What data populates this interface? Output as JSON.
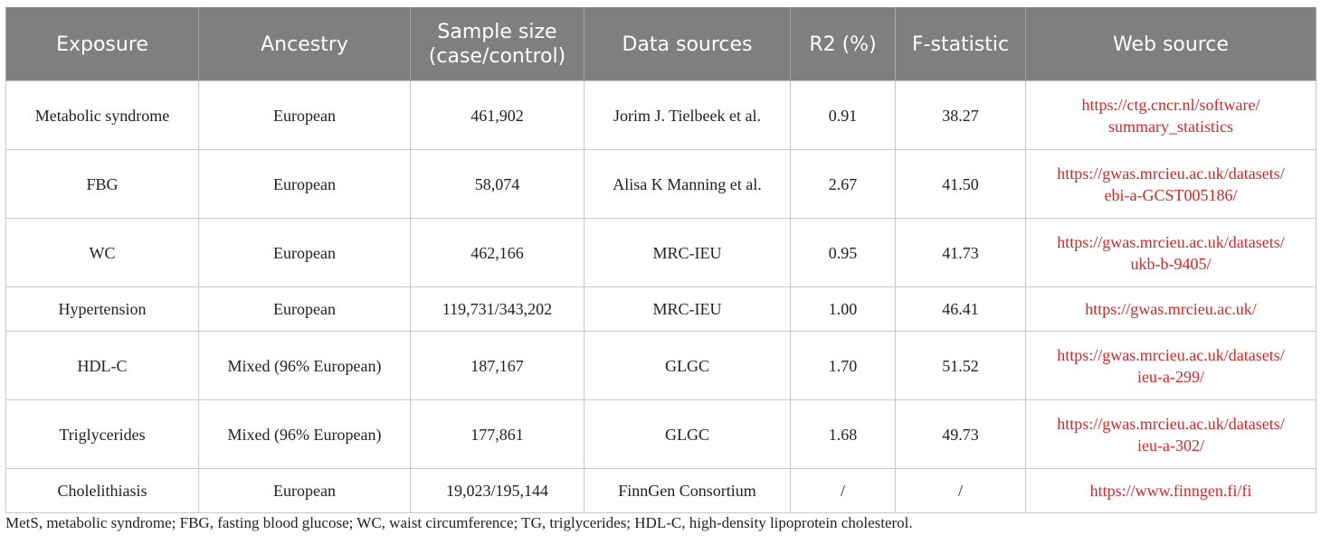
{
  "table": {
    "headers": [
      "Exposure",
      "Ancestry",
      "Sample size\n(case/control)",
      "Data sources",
      "R2 (%)",
      "F-statistic",
      "Web source"
    ],
    "rows": [
      {
        "exposure": "Metabolic syndrome",
        "ancestry": "European",
        "sample_size": "461,902",
        "data_source": "Jorim J. Tielbeek et al.",
        "r2": "0.91",
        "f_statistic": "38.27",
        "web_source": "https://ctg.cncr.nl/software/\nsummary_statistics"
      },
      {
        "exposure": "FBG",
        "ancestry": "European",
        "sample_size": "58,074",
        "data_source": "Alisa K Manning et al.",
        "r2": "2.67",
        "f_statistic": "41.50",
        "web_source": "https://gwas.mrcieu.ac.uk/datasets/\nebi-a-GCST005186/"
      },
      {
        "exposure": "WC",
        "ancestry": "European",
        "sample_size": "462,166",
        "data_source": "MRC-IEU",
        "r2": "0.95",
        "f_statistic": "41.73",
        "web_source": "https://gwas.mrcieu.ac.uk/datasets/\nukb-b-9405/"
      },
      {
        "exposure": "Hypertension",
        "ancestry": "European",
        "sample_size": "119,731/343,202",
        "data_source": "MRC-IEU",
        "r2": "1.00",
        "f_statistic": "46.41",
        "web_source": "https://gwas.mrcieu.ac.uk/"
      },
      {
        "exposure": "HDL-C",
        "ancestry": "Mixed (96% European)",
        "sample_size": "187,167",
        "data_source": "GLGC",
        "r2": "1.70",
        "f_statistic": "51.52",
        "web_source": "https://gwas.mrcieu.ac.uk/datasets/\nieu-a-299/"
      },
      {
        "exposure": "Triglycerides",
        "ancestry": "Mixed (96% European)",
        "sample_size": "177,861",
        "data_source": "GLGC",
        "r2": "1.68",
        "f_statistic": "49.73",
        "web_source": "https://gwas.mrcieu.ac.uk/datasets/\nieu-a-302/"
      },
      {
        "exposure": "Cholelithiasis",
        "ancestry": "European",
        "sample_size": "19,023/195,144",
        "data_source": "FinnGen Consortium",
        "r2": "/",
        "f_statistic": "/",
        "web_source": "https://www.finngen.fi/fi"
      }
    ]
  },
  "footnote": "MetS, metabolic syndrome; FBG, fasting blood glucose; WC, waist circumference; TG, triglycerides; HDL-C, high-density lipoprotein cholesterol.",
  "colors": {
    "header_bg": "#7f7f7f",
    "header_text": "#ffffff",
    "link_text": "#d62728",
    "body_text": "#222222",
    "grid": "#c8c8c8"
  }
}
